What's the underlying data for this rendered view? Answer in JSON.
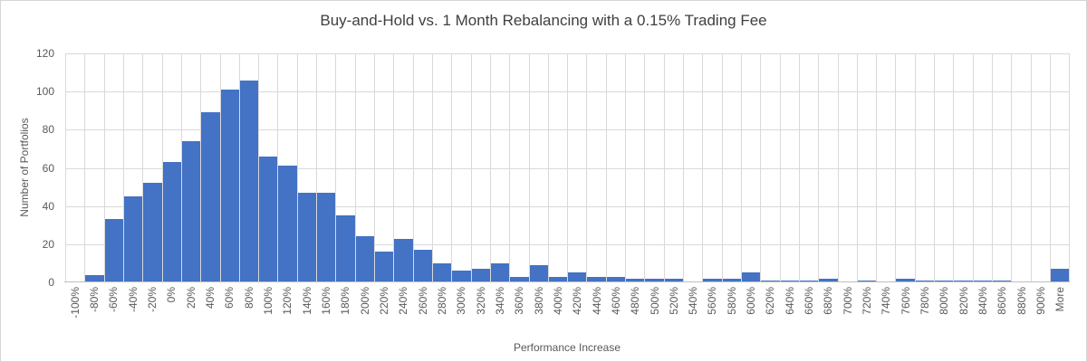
{
  "title": "Buy-and-Hold vs. 1 Month Rebalancing with a 0.15% Trading Fee",
  "chart_data": {
    "type": "bar",
    "subtype": "histogram",
    "title": "Buy-and-Hold vs. 1 Month Rebalancing with a 0.15% Trading Fee",
    "xlabel": "Performance Increase",
    "ylabel": "Number of Portfolios",
    "ylim": [
      0,
      120
    ],
    "yticks": [
      0,
      20,
      40,
      60,
      80,
      100,
      120
    ],
    "grid": "on",
    "legend": "none",
    "categories": [
      "-100%",
      "-80%",
      "-60%",
      "-40%",
      "-20%",
      "0%",
      "20%",
      "40%",
      "60%",
      "80%",
      "100%",
      "120%",
      "140%",
      "160%",
      "180%",
      "200%",
      "220%",
      "240%",
      "260%",
      "280%",
      "300%",
      "320%",
      "340%",
      "360%",
      "380%",
      "400%",
      "420%",
      "440%",
      "460%",
      "480%",
      "500%",
      "520%",
      "540%",
      "560%",
      "580%",
      "600%",
      "620%",
      "640%",
      "660%",
      "680%",
      "700%",
      "720%",
      "740%",
      "760%",
      "780%",
      "800%",
      "820%",
      "840%",
      "860%",
      "880%",
      "900%",
      "More"
    ],
    "values": [
      0,
      4,
      33,
      45,
      52,
      63,
      74,
      89,
      101,
      106,
      66,
      61,
      47,
      47,
      35,
      24,
      16,
      23,
      17,
      10,
      6,
      7,
      10,
      3,
      9,
      3,
      5,
      3,
      3,
      2,
      2,
      2,
      0,
      2,
      2,
      5,
      1,
      1,
      1,
      2,
      0,
      1,
      0,
      2,
      1,
      1,
      1,
      1,
      1,
      0,
      0,
      7
    ],
    "colors": {
      "bar": "#4472C4",
      "gridline": "#D9D9D9",
      "axis_line": "#BFBFBF",
      "title_text": "#404040",
      "axis_text": "#595959"
    }
  }
}
